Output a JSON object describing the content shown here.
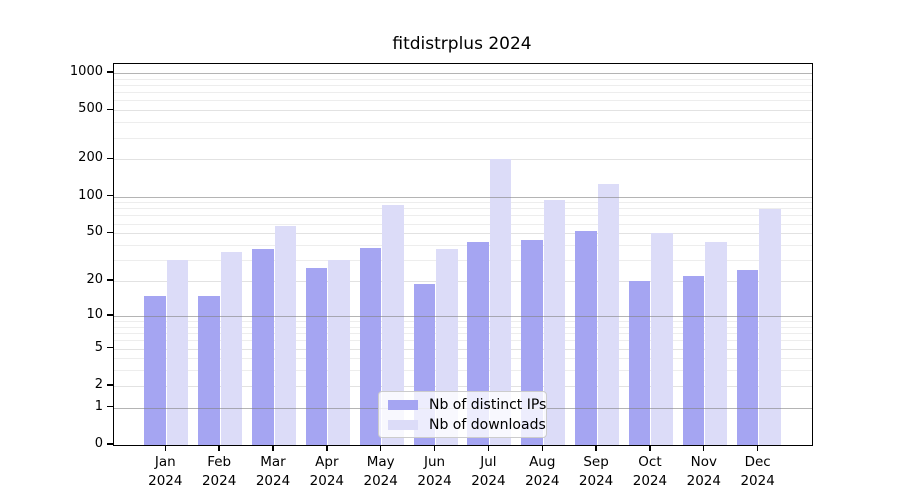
{
  "title": "fitdistrplus 2024",
  "colors": {
    "distinct_ips": "#a5a5f2",
    "downloads": "#dcdcf8",
    "axis": "#000000"
  },
  "legend": {
    "items": [
      {
        "label": "Nb of distinct IPs",
        "color": "#a5a5f2"
      },
      {
        "label": "Nb of downloads",
        "color": "#dcdcf8"
      }
    ]
  },
  "chart_data": {
    "type": "bar",
    "title": "fitdistrplus 2024",
    "categories": [
      "Jan",
      "Feb",
      "Mar",
      "Apr",
      "May",
      "Jun",
      "Jul",
      "Aug",
      "Sep",
      "Oct",
      "Nov",
      "Dec"
    ],
    "year_label": "2024",
    "series": [
      {
        "name": "Nb of distinct IPs",
        "color": "#a5a5f2",
        "values": [
          15,
          15,
          37,
          26,
          38,
          19,
          42,
          44,
          52,
          20,
          22,
          25
        ]
      },
      {
        "name": "Nb of downloads",
        "color": "#dcdcf8",
        "values": [
          30,
          35,
          57,
          30,
          85,
          37,
          200,
          94,
          127,
          50,
          42,
          79
        ]
      }
    ],
    "xlabel": "",
    "ylabel": "",
    "y_scale": "log10(1+x)",
    "y_ticks": [
      0,
      1,
      2,
      5,
      10,
      20,
      50,
      100,
      200,
      500,
      1000
    ],
    "y_decade_ticks": [
      1,
      10,
      100,
      1000
    ],
    "y_minor_ticks": [
      3,
      4,
      6,
      7,
      8,
      9,
      30,
      40,
      60,
      70,
      80,
      90,
      300,
      400,
      600,
      700,
      800,
      900
    ],
    "ylim": [
      0,
      1180
    ],
    "grid": true,
    "legend_position": "lower center"
  }
}
